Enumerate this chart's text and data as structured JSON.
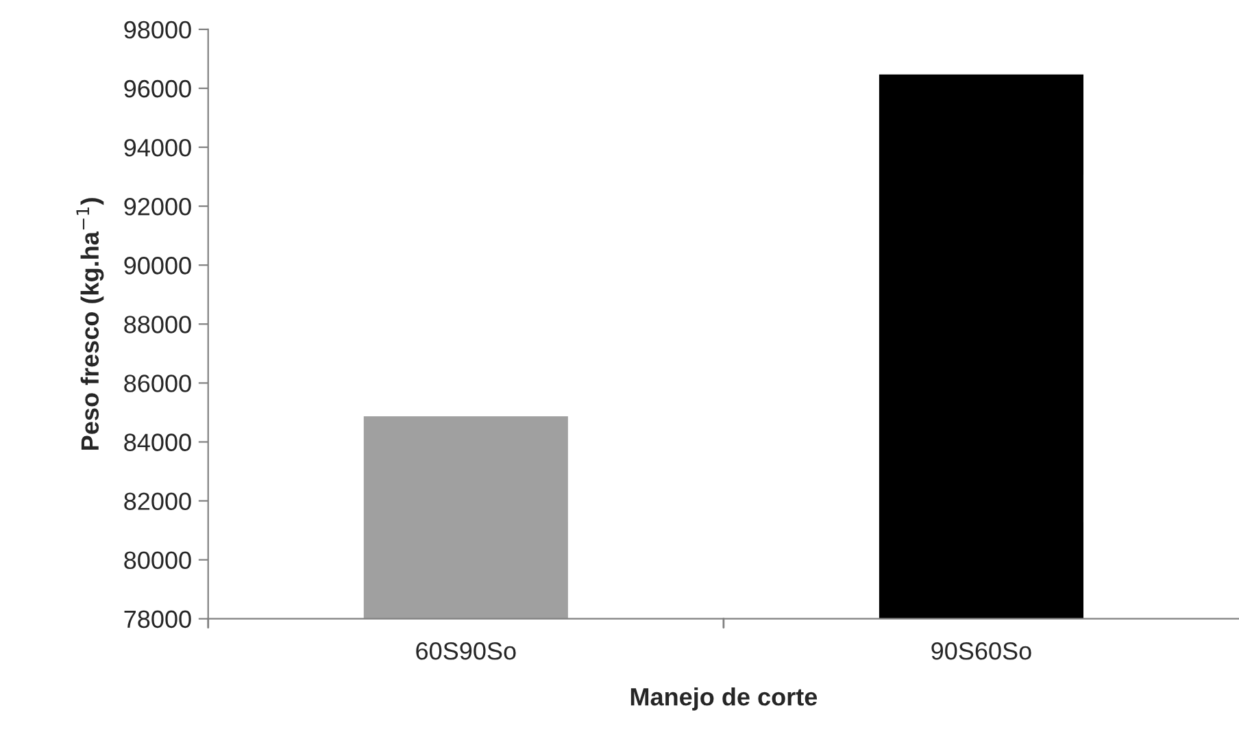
{
  "chart_data": {
    "type": "bar",
    "xlabel": "Manejo de corte",
    "ylabel": "Peso fresco (kg.ha$^{−1}$)",
    "categories": [
      "60S90So",
      "90S60So"
    ],
    "series": [
      {
        "values": [
          84900,
          96500
        ],
        "colors": [
          "#a0a0a0",
          "#000000"
        ]
      }
    ],
    "ylim": [
      78000,
      98000
    ],
    "yticks": [
      78000,
      80000,
      82000,
      84000,
      86000,
      88000,
      90000,
      92000,
      94000,
      96000,
      98000
    ],
    "grid": false,
    "legend": false
  }
}
